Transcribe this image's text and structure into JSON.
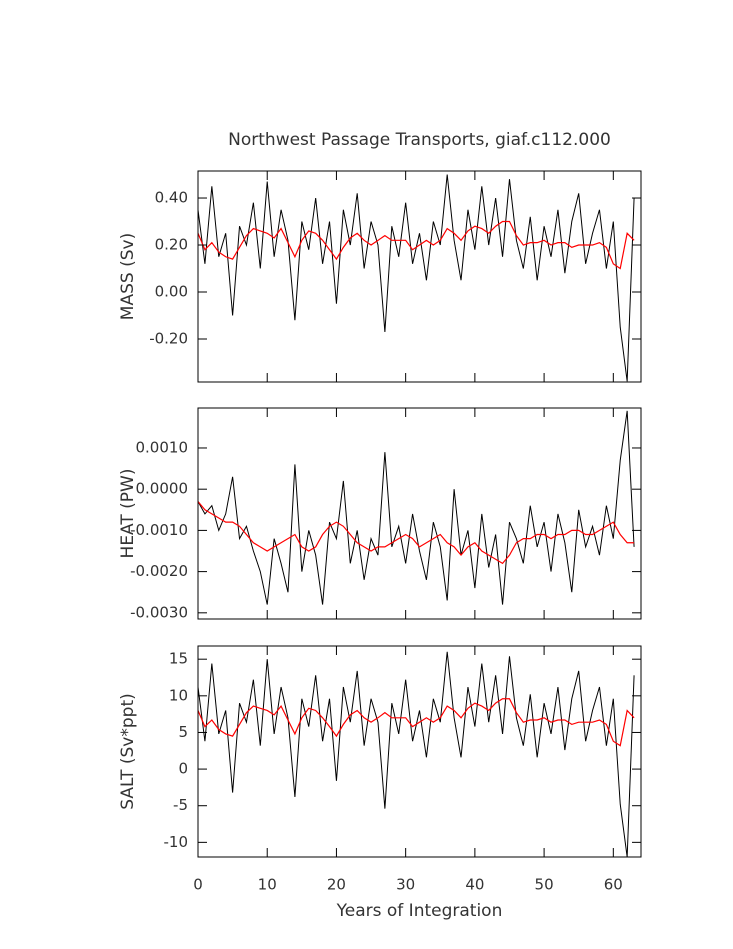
{
  "chart_data": [
    {
      "type": "line",
      "title": "Northwest Passage Transports, giaf.c112.000",
      "ylabel": "MASS (Sv)",
      "x": [
        0,
        1,
        2,
        3,
        4,
        5,
        6,
        7,
        8,
        9,
        10,
        11,
        12,
        13,
        14,
        15,
        16,
        17,
        18,
        19,
        20,
        21,
        22,
        23,
        24,
        25,
        26,
        27,
        28,
        29,
        30,
        31,
        32,
        33,
        34,
        35,
        36,
        37,
        38,
        39,
        40,
        41,
        42,
        43,
        44,
        45,
        46,
        47,
        48,
        49,
        50,
        51,
        52,
        53,
        54,
        55,
        56,
        57,
        58,
        59,
        60,
        61,
        62,
        63
      ],
      "xlim": [
        0,
        64
      ],
      "xticks": [
        0,
        10,
        20,
        30,
        40,
        50,
        60
      ],
      "ylim": [
        -0.383,
        0.515
      ],
      "yticks": [
        {
          "value": 0.4,
          "label": "0.40"
        },
        {
          "value": 0.2,
          "label": "0.20"
        },
        {
          "value": 0,
          "label": "0.00"
        },
        {
          "value": -0.2,
          "label": "-0.20"
        }
      ],
      "series": [
        {
          "color": "#000000",
          "values": [
            0.35,
            0.12,
            0.45,
            0.15,
            0.25,
            -0.1,
            0.28,
            0.2,
            0.38,
            0.1,
            0.47,
            0.15,
            0.35,
            0.22,
            -0.12,
            0.3,
            0.18,
            0.4,
            0.12,
            0.3,
            -0.05,
            0.35,
            0.2,
            0.42,
            0.1,
            0.3,
            0.2,
            -0.17,
            0.28,
            0.15,
            0.38,
            0.12,
            0.25,
            0.05,
            0.3,
            0.2,
            0.5,
            0.22,
            0.05,
            0.35,
            0.18,
            0.45,
            0.2,
            0.4,
            0.15,
            0.48,
            0.22,
            0.1,
            0.32,
            0.05,
            0.28,
            0.15,
            0.35,
            0.08,
            0.3,
            0.42,
            0.12,
            0.25,
            0.35,
            0.1,
            0.3,
            -0.15,
            -0.38,
            0.4
          ]
        },
        {
          "color": "#ff0000",
          "values": [
            0.25,
            0.18,
            0.21,
            0.17,
            0.15,
            0.14,
            0.19,
            0.24,
            0.27,
            0.26,
            0.25,
            0.23,
            0.27,
            0.21,
            0.15,
            0.22,
            0.26,
            0.25,
            0.22,
            0.18,
            0.14,
            0.19,
            0.23,
            0.25,
            0.22,
            0.2,
            0.22,
            0.24,
            0.22,
            0.22,
            0.22,
            0.18,
            0.2,
            0.22,
            0.2,
            0.22,
            0.27,
            0.25,
            0.22,
            0.26,
            0.28,
            0.27,
            0.25,
            0.28,
            0.3,
            0.3,
            0.24,
            0.2,
            0.21,
            0.21,
            0.22,
            0.2,
            0.21,
            0.21,
            0.19,
            0.2,
            0.2,
            0.2,
            0.21,
            0.19,
            0.12,
            0.1,
            0.25,
            0.22
          ]
        }
      ]
    },
    {
      "type": "line",
      "ylabel": "HEAT (PW)",
      "x": [
        0,
        1,
        2,
        3,
        4,
        5,
        6,
        7,
        8,
        9,
        10,
        11,
        12,
        13,
        14,
        15,
        16,
        17,
        18,
        19,
        20,
        21,
        22,
        23,
        24,
        25,
        26,
        27,
        28,
        29,
        30,
        31,
        32,
        33,
        34,
        35,
        36,
        37,
        38,
        39,
        40,
        41,
        42,
        43,
        44,
        45,
        46,
        47,
        48,
        49,
        50,
        51,
        52,
        53,
        54,
        55,
        56,
        57,
        58,
        59,
        60,
        61,
        62,
        63
      ],
      "xlim": [
        0,
        64
      ],
      "xticks": [
        0,
        10,
        20,
        30,
        40,
        50,
        60
      ],
      "ylim": [
        -0.00315,
        0.00197
      ],
      "yticks": [
        {
          "value": 0.001,
          "label": "0.0010"
        },
        {
          "value": 0,
          "label": "0.0000"
        },
        {
          "value": -0.001,
          "label": "-0.0010"
        },
        {
          "value": -0.002,
          "label": "-0.0020"
        },
        {
          "value": -0.003,
          "label": "-0.0030"
        }
      ],
      "series": [
        {
          "color": "#000000",
          "values": [
            -0.0003,
            -0.0006,
            -0.0004,
            -0.001,
            -0.0006,
            0.0003,
            -0.0012,
            -0.0009,
            -0.0015,
            -0.002,
            -0.0028,
            -0.0012,
            -0.0018,
            -0.0025,
            0.0006,
            -0.002,
            -0.001,
            -0.0016,
            -0.0028,
            -0.0008,
            -0.0012,
            0.0002,
            -0.0018,
            -0.001,
            -0.0022,
            -0.0012,
            -0.0016,
            0.0009,
            -0.0014,
            -0.0009,
            -0.0018,
            -0.0006,
            -0.0015,
            -0.0022,
            -0.0008,
            -0.0014,
            -0.0027,
            0.0,
            -0.0016,
            -0.001,
            -0.0024,
            -0.0006,
            -0.0019,
            -0.0011,
            -0.0028,
            -0.0008,
            -0.0012,
            -0.0018,
            -0.0004,
            -0.0014,
            -0.0008,
            -0.002,
            -0.0006,
            -0.0013,
            -0.0025,
            -0.0005,
            -0.0014,
            -0.0009,
            -0.0016,
            -0.0004,
            -0.0012,
            0.0007,
            0.0019,
            -0.0014
          ]
        },
        {
          "color": "#ff0000",
          "values": [
            -0.0003,
            -0.0005,
            -0.0006,
            -0.0007,
            -0.0008,
            -0.0008,
            -0.0009,
            -0.0011,
            -0.0013,
            -0.0014,
            -0.0015,
            -0.0014,
            -0.0013,
            -0.0012,
            -0.0011,
            -0.0014,
            -0.0015,
            -0.0014,
            -0.0011,
            -0.0009,
            -0.0008,
            -0.0009,
            -0.0011,
            -0.0013,
            -0.0014,
            -0.0015,
            -0.0014,
            -0.0014,
            -0.0013,
            -0.0012,
            -0.0011,
            -0.0012,
            -0.0014,
            -0.0013,
            -0.0012,
            -0.0011,
            -0.0013,
            -0.0014,
            -0.0016,
            -0.0014,
            -0.0013,
            -0.0015,
            -0.0016,
            -0.0017,
            -0.0018,
            -0.0016,
            -0.0013,
            -0.0012,
            -0.0012,
            -0.0011,
            -0.0011,
            -0.0012,
            -0.0011,
            -0.0011,
            -0.001,
            -0.001,
            -0.0011,
            -0.0011,
            -0.001,
            -0.0009,
            -0.0008,
            -0.0011,
            -0.0013,
            -0.0013
          ]
        }
      ]
    },
    {
      "type": "line",
      "ylabel": "SALT (Sv*ppt)",
      "xlabel": "Years of Integration",
      "x": [
        0,
        1,
        2,
        3,
        4,
        5,
        6,
        7,
        8,
        9,
        10,
        11,
        12,
        13,
        14,
        15,
        16,
        17,
        18,
        19,
        20,
        21,
        22,
        23,
        24,
        25,
        26,
        27,
        28,
        29,
        30,
        31,
        32,
        33,
        34,
        35,
        36,
        37,
        38,
        39,
        40,
        41,
        42,
        43,
        44,
        45,
        46,
        47,
        48,
        49,
        50,
        51,
        52,
        53,
        54,
        55,
        56,
        57,
        58,
        59,
        60,
        61,
        62,
        63
      ],
      "xlim": [
        0,
        64
      ],
      "xticks": [
        0,
        10,
        20,
        30,
        40,
        50,
        60
      ],
      "ylim": [
        -12,
        16.8
      ],
      "yticks": [
        15,
        10,
        5,
        0,
        -5,
        -10
      ],
      "series": [
        {
          "color": "#000000",
          "values": [
            11.2,
            3.8,
            14.4,
            4.8,
            8,
            -3.2,
            9,
            6.4,
            12.2,
            3.2,
            15,
            4.8,
            11.2,
            7,
            -3.8,
            9.6,
            5.8,
            12.8,
            3.8,
            9.6,
            -1.6,
            11.2,
            6.4,
            13.4,
            3.2,
            9.6,
            6.4,
            -5.4,
            9,
            4.8,
            12.2,
            3.8,
            8,
            1.6,
            9.6,
            6.4,
            16,
            7,
            1.6,
            11.2,
            5.8,
            14.4,
            6.4,
            12.8,
            4.8,
            15.4,
            7,
            3.2,
            10.2,
            1.6,
            9,
            4.8,
            11.2,
            2.6,
            9.6,
            13.4,
            3.8,
            8,
            11.2,
            3.2,
            9.6,
            -4.8,
            -12,
            12.8
          ]
        },
        {
          "color": "#ff0000",
          "values": [
            8,
            5.8,
            6.7,
            5.4,
            4.8,
            4.5,
            6.1,
            7.7,
            8.6,
            8.3,
            8,
            7.4,
            8.6,
            6.7,
            4.8,
            7,
            8.3,
            8,
            7,
            5.8,
            4.5,
            6.1,
            7.4,
            8,
            7,
            6.4,
            7,
            7.7,
            7,
            7,
            7,
            5.8,
            6.4,
            7,
            6.4,
            7,
            8.6,
            8,
            7,
            8.3,
            9,
            8.6,
            8,
            9,
            9.6,
            9.6,
            7.7,
            6.4,
            6.7,
            6.7,
            7,
            6.4,
            6.7,
            6.7,
            6.1,
            6.4,
            6.4,
            6.4,
            6.7,
            6.1,
            3.8,
            3.2,
            8,
            7
          ]
        }
      ]
    }
  ]
}
